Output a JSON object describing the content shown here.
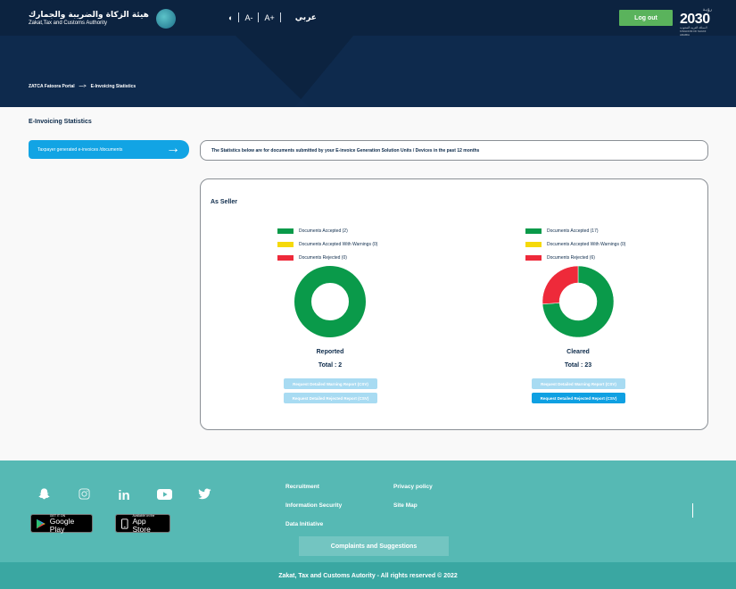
{
  "header": {
    "logo_ar": "هيئة الزكاة والضريبة والجمارك",
    "logo_en": "Zakat,Tax and Customs Authority",
    "contrast_icon": "contrast-icon",
    "font_decrease": "A-",
    "font_increase": "A+",
    "language": "عربي",
    "logout_label": "Log out",
    "vision_ar": "رؤيـة",
    "vision_year": "2030",
    "vision_sub": "المملكة العربية السعودية",
    "vision_sub2": "KINGDOM OF SAUDI ARABIA"
  },
  "breadcrumb": {
    "root": "ZATCA Fatoora Portal",
    "separator": "—>",
    "current": "E-Invoicing Statistics"
  },
  "page": {
    "title": "E-Invoicing Statistics",
    "side_tab": "Taxpayer generated e-invoices /documents",
    "info": "The Statistics below are for documents submitted by your E-invoice Generation Solution Units / Devices in the past 12 months"
  },
  "stats": {
    "section_title": "As Seller",
    "colors": {
      "accepted": "#0a9a4a",
      "warnings": "#f5d90a",
      "rejected": "#ee2a3a"
    },
    "reported": {
      "legend_accepted": "Documents Accepted (2)",
      "legend_warnings": "Documents Accepted With Warnings (0)",
      "legend_rejected": "Documents Rejected (0)",
      "accepted": 2,
      "warnings": 0,
      "rejected": 0,
      "label": "Reported",
      "total": "Total : 2",
      "warning_report": "Request Detailed Warning Report (CSV)",
      "rejected_report": "Request Detailed Rejected Report (CSV)"
    },
    "cleared": {
      "legend_accepted": "Documents Accepted (17)",
      "legend_warnings": "Documents Accepted With Warnings (0)",
      "legend_rejected": "Documents Rejected (6)",
      "accepted": 17,
      "warnings": 0,
      "rejected": 6,
      "label": "Cleared",
      "total": "Total : 23",
      "warning_report": "Request Detailed Warning Report (CSV)",
      "rejected_report": "Request Detailed Rejected Report (CSV)"
    }
  },
  "footer": {
    "social": [
      "snapchat-icon",
      "instagram-icon",
      "linkedin-icon",
      "youtube-icon",
      "twitter-icon"
    ],
    "linkedin_text": "in",
    "google_play_small": "GET IT ON",
    "google_play_big": "Google Play",
    "app_store_small": "Available on the",
    "app_store_big": "App Store",
    "links": {
      "recruitment": "Recruitment",
      "privacy": "Privacy policy",
      "infosec": "Information Security",
      "sitemap": "Site Map",
      "data": "Data Initiative"
    },
    "complaints": "Complaints and Suggestions",
    "copyright": "Zakat, Tax and Customs Autority - All rights reserved © 2022"
  }
}
